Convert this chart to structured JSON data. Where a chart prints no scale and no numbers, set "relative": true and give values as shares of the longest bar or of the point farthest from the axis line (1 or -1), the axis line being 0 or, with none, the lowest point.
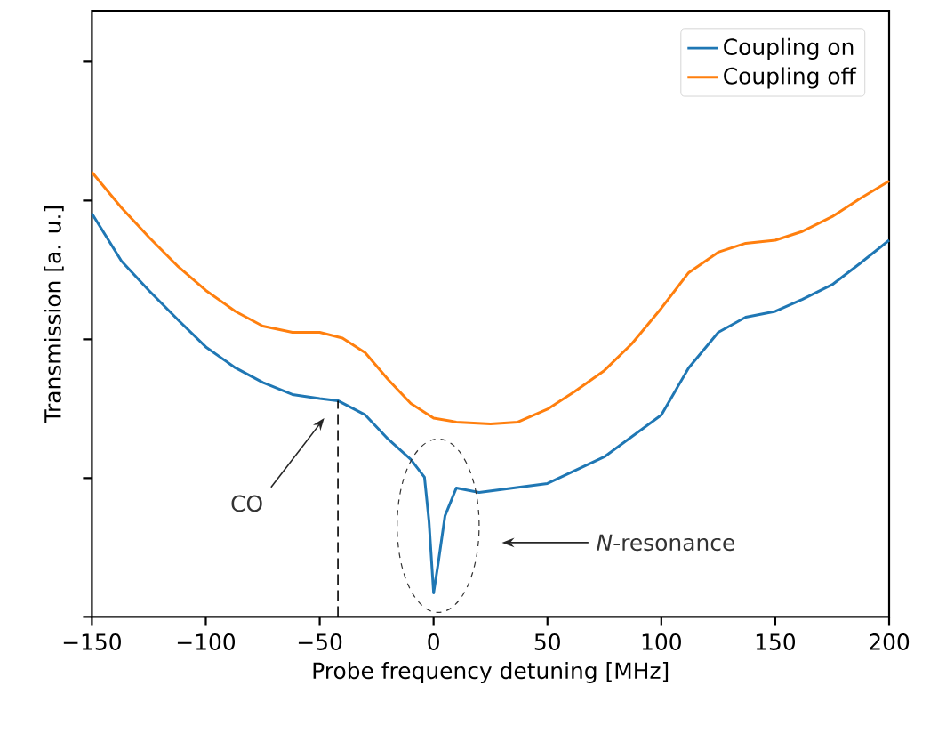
{
  "chart_data": {
    "type": "line",
    "xlabel": "Probe frequency detuning [MHz]",
    "ylabel": "Transmission [a. u.]",
    "relative": true,
    "xlim": [
      -150,
      200
    ],
    "xticks": [
      {
        "value": -150,
        "label": "−150"
      },
      {
        "value": -100,
        "label": "−100"
      },
      {
        "value": -50,
        "label": "−50"
      },
      0,
      50,
      100,
      150,
      200
    ],
    "legend": "top right",
    "marker": "none",
    "line_style": "solid",
    "grid": false,
    "series": [
      {
        "name": "Coupling on",
        "color": "#1f77b4",
        "x": [
          -150,
          -137,
          -125,
          -112,
          -100,
          -87,
          -75,
          -62,
          -50,
          -42,
          -30,
          -20,
          -10,
          -4,
          -2,
          0,
          2,
          5,
          10,
          20,
          50,
          75,
          100,
          112,
          125,
          137,
          150,
          162,
          175,
          187,
          200
        ],
        "values": [
          0.907,
          0.8,
          0.734,
          0.667,
          0.607,
          0.56,
          0.527,
          0.5,
          0.491,
          0.486,
          0.454,
          0.4,
          0.354,
          0.314,
          0.214,
          0.054,
          0.12,
          0.227,
          0.29,
          0.28,
          0.3,
          0.36,
          0.454,
          0.56,
          0.64,
          0.674,
          0.687,
          0.714,
          0.747,
          0.794,
          0.847
        ]
      },
      {
        "name": "Coupling off",
        "color": "#ff7f0e",
        "x": [
          -150,
          -137,
          -125,
          -112,
          -100,
          -87,
          -75,
          -62,
          -50,
          -40,
          -30,
          -20,
          -10,
          0,
          10,
          25,
          37,
          50,
          62,
          75,
          87,
          100,
          112,
          125,
          137,
          150,
          162,
          175,
          187,
          200
        ],
        "values": [
          1.0,
          0.92,
          0.854,
          0.787,
          0.734,
          0.687,
          0.654,
          0.64,
          0.64,
          0.627,
          0.594,
          0.534,
          0.48,
          0.447,
          0.438,
          0.434,
          0.438,
          0.467,
          0.507,
          0.554,
          0.614,
          0.694,
          0.774,
          0.82,
          0.84,
          0.847,
          0.867,
          0.9,
          0.94,
          0.98
        ]
      }
    ],
    "ref_lines": [
      {
        "axis": "x",
        "value": -42,
        "line_style": "dashed",
        "color": "#000000"
      }
    ],
    "annotations": [
      "CO",
      "*N*-resonance"
    ]
  }
}
